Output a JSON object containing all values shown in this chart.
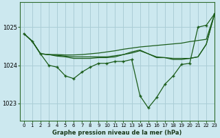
{
  "title": "Graphe pression niveau de la mer (hPa)",
  "background_color": "#cce8ef",
  "grid_color": "#aacdd6",
  "line_color": "#1a5c1a",
  "xlim": [
    -0.5,
    23
  ],
  "ylim": [
    1022.55,
    1025.65
  ],
  "yticks": [
    1023,
    1024,
    1025
  ],
  "xticks": [
    0,
    1,
    2,
    3,
    4,
    5,
    6,
    7,
    8,
    9,
    10,
    11,
    12,
    13,
    14,
    15,
    16,
    17,
    18,
    19,
    20,
    21,
    22,
    23
  ],
  "series": [
    {
      "y": [
        1024.83,
        1024.63,
        1024.3,
        1024.0,
        1023.95,
        1023.72,
        1023.65,
        1023.82,
        1023.95,
        1024.05,
        1024.05,
        1024.1,
        1024.1,
        1024.15,
        1023.2,
        1022.88,
        1023.15,
        1023.5,
        1023.72,
        1024.02,
        1024.05,
        1025.0,
        1025.05,
        1025.35
      ],
      "marker": true
    },
    {
      "y": [
        1024.83,
        1024.63,
        1024.3,
        1024.28,
        1024.28,
        1024.27,
        1024.27,
        1024.28,
        1024.3,
        1024.32,
        1024.35,
        1024.38,
        1024.42,
        1024.45,
        1024.48,
        1024.5,
        1024.52,
        1024.54,
        1024.56,
        1024.58,
        1024.62,
        1024.65,
        1024.68,
        1025.35
      ],
      "marker": false
    },
    {
      "y": [
        1024.83,
        1024.63,
        1024.3,
        1024.28,
        1024.26,
        1024.24,
        1024.22,
        1024.22,
        1024.22,
        1024.22,
        1024.22,
        1024.25,
        1024.28,
        1024.32,
        1024.38,
        1024.3,
        1024.22,
        1024.2,
        1024.15,
        1024.15,
        1024.18,
        1024.22,
        1024.55,
        1025.35
      ],
      "marker": false
    },
    {
      "y": [
        1024.83,
        1024.63,
        1024.3,
        1024.28,
        1024.24,
        1024.22,
        1024.18,
        1024.18,
        1024.18,
        1024.2,
        1024.2,
        1024.22,
        1024.28,
        1024.35,
        1024.4,
        1024.3,
        1024.2,
        1024.2,
        1024.18,
        1024.18,
        1024.18,
        1024.22,
        1024.55,
        1025.35
      ],
      "marker": false
    }
  ]
}
